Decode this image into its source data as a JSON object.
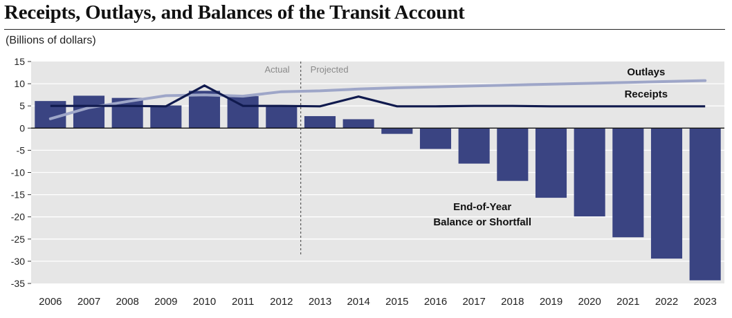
{
  "page": {
    "title": "Receipts, Outlays, and Balances of the Transit Account",
    "units": "(Billions of dollars)"
  },
  "colors": {
    "plot_bg": "#e6e6e6",
    "bar": "#3a4482",
    "receipts": "#101a4e",
    "outlays": "#9ea6c8",
    "grid": "#ffffff"
  },
  "chart_data": {
    "type": "bar",
    "title": "Receipts, Outlays, and Balances of the Transit Account",
    "ylabel": "(Billions of dollars)",
    "xlabel": "",
    "ylim": [
      -35,
      15
    ],
    "yticks": [
      15,
      10,
      5,
      0,
      -5,
      -10,
      -15,
      -20,
      -25,
      -30,
      -35
    ],
    "grid": true,
    "categories": [
      "2006",
      "2007",
      "2008",
      "2009",
      "2010",
      "2011",
      "2012",
      "2013",
      "2014",
      "2015",
      "2016",
      "2017",
      "2018",
      "2019",
      "2020",
      "2021",
      "2022",
      "2023"
    ],
    "series": [
      {
        "name": "End-of-Year Balance or Shortfall",
        "kind": "bar",
        "values": [
          6.1,
          7.3,
          6.8,
          5.1,
          8.4,
          7.2,
          4.9,
          2.7,
          2.0,
          -1.3,
          -4.7,
          -8.0,
          -11.9,
          -15.7,
          -19.9,
          -24.6,
          -29.4,
          -34.3
        ]
      },
      {
        "name": "Receipts",
        "kind": "line",
        "values": [
          5.0,
          5.0,
          5.0,
          4.9,
          9.6,
          5.0,
          5.0,
          4.9,
          7.1,
          4.9,
          4.9,
          5.0,
          5.0,
          4.9,
          4.9,
          4.9,
          4.9,
          4.9
        ]
      },
      {
        "name": "Outlays",
        "kind": "line",
        "values": [
          2.1,
          4.6,
          6.0,
          7.3,
          7.5,
          7.2,
          8.2,
          8.4,
          8.8,
          9.1,
          9.3,
          9.5,
          9.7,
          9.9,
          10.1,
          10.3,
          10.5,
          10.7
        ]
      }
    ],
    "annotations": {
      "divider_after": "2012",
      "actual_label": "Actual",
      "projected_label": "Projected",
      "outlays_label": "Outlays",
      "receipts_label": "Receipts",
      "balance_label_line1": "End-of-Year",
      "balance_label_line2": "Balance or Shortfall"
    }
  }
}
